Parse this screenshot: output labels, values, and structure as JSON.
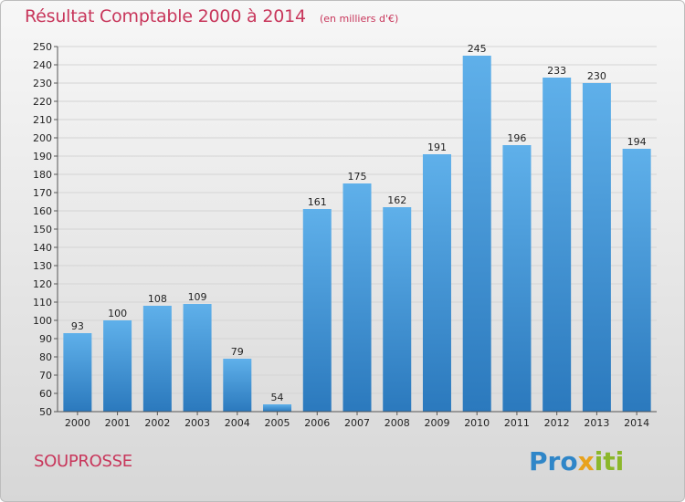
{
  "header": {
    "title": "Résultat Comptable 2000 à 2014",
    "subtitle": "(en milliers d'€)"
  },
  "footer": {
    "city": "SOUPROSSE",
    "logo_parts": [
      "Pro",
      "x",
      "iti"
    ]
  },
  "colors": {
    "bar_top": "#5fb0ea",
    "bar_bottom": "#2b79bd",
    "title": "#c8365b",
    "grid": "#d4d4d4"
  },
  "chart_data": {
    "type": "bar",
    "title": "Résultat Comptable 2000 à 2014",
    "subtitle": "(en milliers d'€)",
    "categories": [
      "2000",
      "2001",
      "2002",
      "2003",
      "2004",
      "2005",
      "2006",
      "2007",
      "2008",
      "2009",
      "2010",
      "2011",
      "2012",
      "2013",
      "2014"
    ],
    "values": [
      93,
      100,
      108,
      109,
      79,
      54,
      161,
      175,
      162,
      191,
      245,
      196,
      233,
      230,
      194
    ],
    "ylim": [
      50,
      250
    ],
    "yticks": [
      50,
      60,
      70,
      80,
      90,
      100,
      110,
      120,
      130,
      140,
      150,
      160,
      170,
      180,
      190,
      200,
      210,
      220,
      230,
      240,
      250
    ],
    "grid": true,
    "data_labels": true
  }
}
